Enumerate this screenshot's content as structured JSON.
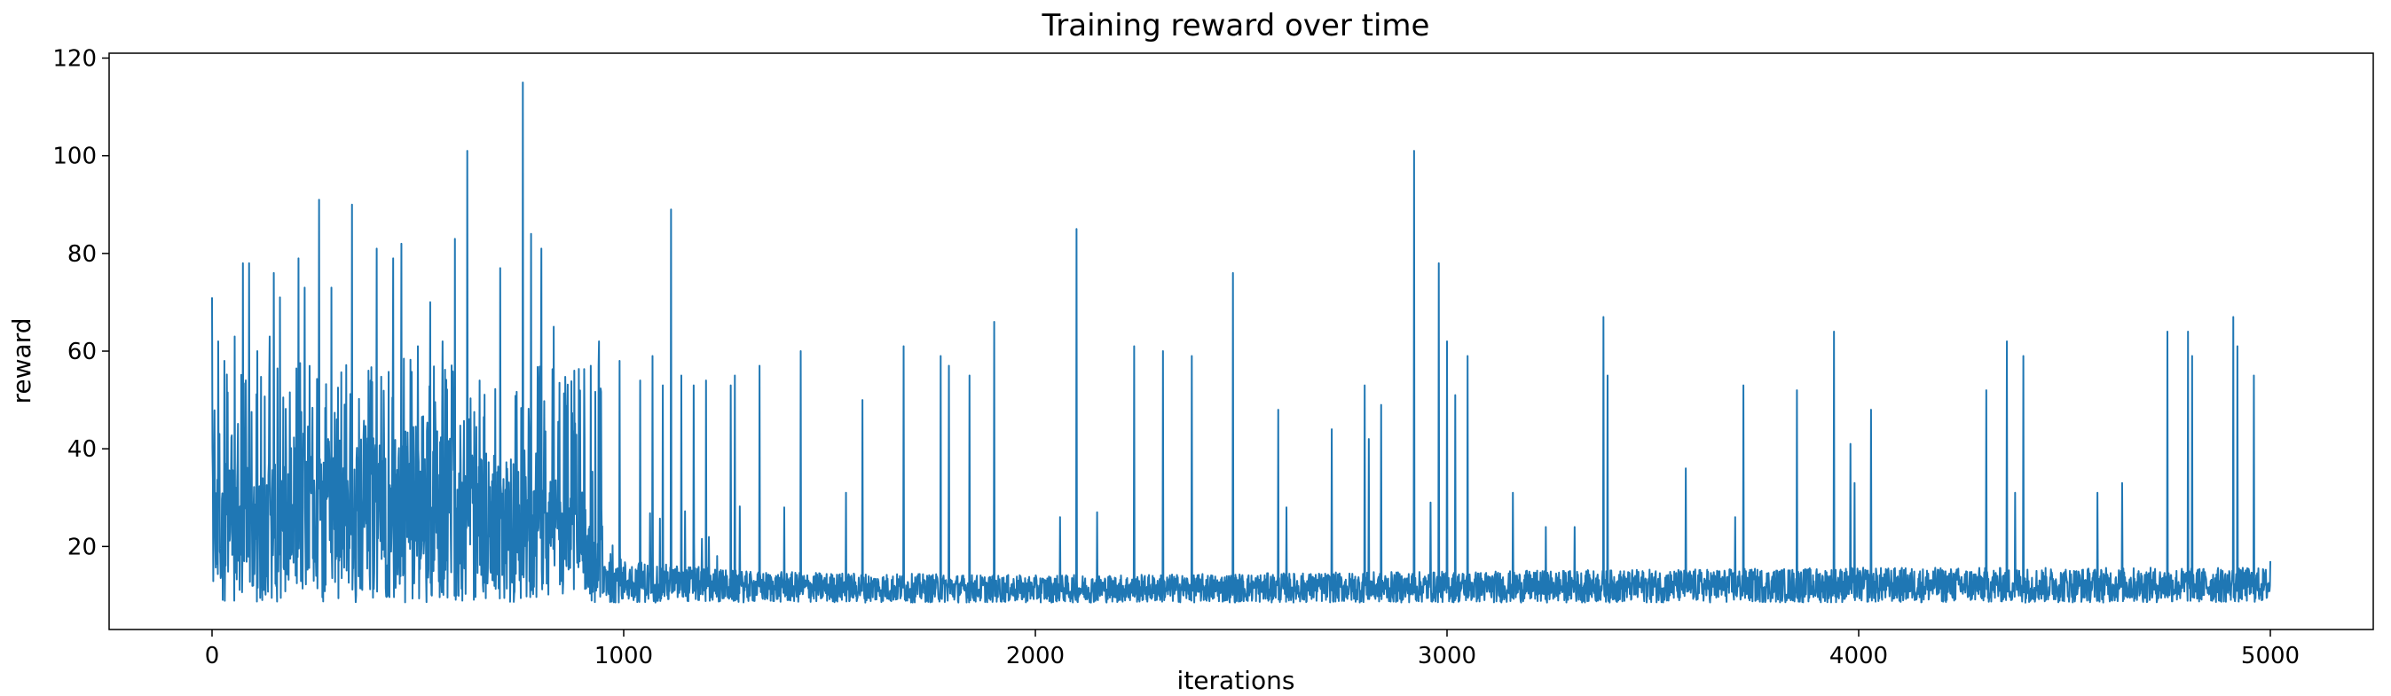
{
  "chart_data": {
    "type": "line",
    "title": "Training reward over time",
    "xlabel": "iterations",
    "ylabel": "reward",
    "xlim": [
      -250,
      5250
    ],
    "ylim": [
      3,
      121
    ],
    "xticks": [
      0,
      1000,
      2000,
      3000,
      4000,
      5000
    ],
    "yticks": [
      20,
      40,
      60,
      80,
      100,
      120
    ],
    "grid": false,
    "series": [
      {
        "color": "#1f77b4",
        "baseline": [
          {
            "x": 0,
            "y": 20
          },
          {
            "x": 100,
            "y": 22
          },
          {
            "x": 300,
            "y": 24
          },
          {
            "x": 500,
            "y": 25
          },
          {
            "x": 700,
            "y": 23
          },
          {
            "x": 850,
            "y": 18
          },
          {
            "x": 1000,
            "y": 14
          },
          {
            "x": 1300,
            "y": 12.5
          },
          {
            "x": 2000,
            "y": 12
          },
          {
            "x": 3000,
            "y": 12.5
          },
          {
            "x": 4000,
            "y": 13
          },
          {
            "x": 5000,
            "y": 13
          }
        ],
        "noise_floor": 8.5,
        "peaks": [
          {
            "x": 0,
            "y": 71
          },
          {
            "x": 15,
            "y": 62
          },
          {
            "x": 30,
            "y": 58
          },
          {
            "x": 55,
            "y": 63
          },
          {
            "x": 75,
            "y": 78
          },
          {
            "x": 90,
            "y": 78
          },
          {
            "x": 110,
            "y": 60
          },
          {
            "x": 140,
            "y": 63
          },
          {
            "x": 150,
            "y": 76
          },
          {
            "x": 165,
            "y": 71
          },
          {
            "x": 210,
            "y": 79
          },
          {
            "x": 225,
            "y": 73
          },
          {
            "x": 260,
            "y": 91
          },
          {
            "x": 290,
            "y": 73
          },
          {
            "x": 340,
            "y": 90
          },
          {
            "x": 380,
            "y": 56
          },
          {
            "x": 400,
            "y": 81
          },
          {
            "x": 440,
            "y": 79
          },
          {
            "x": 460,
            "y": 82
          },
          {
            "x": 500,
            "y": 61
          },
          {
            "x": 530,
            "y": 70
          },
          {
            "x": 560,
            "y": 62
          },
          {
            "x": 590,
            "y": 83
          },
          {
            "x": 620,
            "y": 101
          },
          {
            "x": 650,
            "y": 54
          },
          {
            "x": 700,
            "y": 77
          },
          {
            "x": 755,
            "y": 115
          },
          {
            "x": 775,
            "y": 84
          },
          {
            "x": 800,
            "y": 81
          },
          {
            "x": 830,
            "y": 65
          },
          {
            "x": 880,
            "y": 56
          },
          {
            "x": 920,
            "y": 57
          },
          {
            "x": 940,
            "y": 62
          },
          {
            "x": 990,
            "y": 58
          },
          {
            "x": 1040,
            "y": 54
          },
          {
            "x": 1070,
            "y": 59
          },
          {
            "x": 1095,
            "y": 53
          },
          {
            "x": 1115,
            "y": 89
          },
          {
            "x": 1140,
            "y": 55
          },
          {
            "x": 1170,
            "y": 53
          },
          {
            "x": 1200,
            "y": 54
          },
          {
            "x": 1260,
            "y": 53
          },
          {
            "x": 1270,
            "y": 55
          },
          {
            "x": 1330,
            "y": 57
          },
          {
            "x": 1390,
            "y": 28
          },
          {
            "x": 1430,
            "y": 60
          },
          {
            "x": 1540,
            "y": 31
          },
          {
            "x": 1580,
            "y": 50
          },
          {
            "x": 1680,
            "y": 61
          },
          {
            "x": 1770,
            "y": 59
          },
          {
            "x": 1790,
            "y": 57
          },
          {
            "x": 1840,
            "y": 55
          },
          {
            "x": 1900,
            "y": 66
          },
          {
            "x": 2060,
            "y": 26
          },
          {
            "x": 2100,
            "y": 85
          },
          {
            "x": 2150,
            "y": 27
          },
          {
            "x": 2240,
            "y": 61
          },
          {
            "x": 2310,
            "y": 60
          },
          {
            "x": 2380,
            "y": 59
          },
          {
            "x": 2480,
            "y": 76
          },
          {
            "x": 2590,
            "y": 48
          },
          {
            "x": 2610,
            "y": 28
          },
          {
            "x": 2720,
            "y": 44
          },
          {
            "x": 2800,
            "y": 53
          },
          {
            "x": 2810,
            "y": 42
          },
          {
            "x": 2840,
            "y": 49
          },
          {
            "x": 2920,
            "y": 101
          },
          {
            "x": 2960,
            "y": 29
          },
          {
            "x": 2980,
            "y": 78
          },
          {
            "x": 3000,
            "y": 62
          },
          {
            "x": 3020,
            "y": 51
          },
          {
            "x": 3050,
            "y": 59
          },
          {
            "x": 3160,
            "y": 31
          },
          {
            "x": 3240,
            "y": 24
          },
          {
            "x": 3310,
            "y": 24
          },
          {
            "x": 3380,
            "y": 67
          },
          {
            "x": 3390,
            "y": 55
          },
          {
            "x": 3580,
            "y": 36
          },
          {
            "x": 3700,
            "y": 26
          },
          {
            "x": 3720,
            "y": 53
          },
          {
            "x": 3850,
            "y": 52
          },
          {
            "x": 3940,
            "y": 64
          },
          {
            "x": 3980,
            "y": 41
          },
          {
            "x": 3990,
            "y": 33
          },
          {
            "x": 4030,
            "y": 48
          },
          {
            "x": 4310,
            "y": 52
          },
          {
            "x": 4360,
            "y": 62
          },
          {
            "x": 4380,
            "y": 31
          },
          {
            "x": 4400,
            "y": 59
          },
          {
            "x": 4580,
            "y": 31
          },
          {
            "x": 4640,
            "y": 33
          },
          {
            "x": 4750,
            "y": 64
          },
          {
            "x": 4800,
            "y": 64
          },
          {
            "x": 4810,
            "y": 59
          },
          {
            "x": 4910,
            "y": 67
          },
          {
            "x": 4920,
            "y": 61
          },
          {
            "x": 4960,
            "y": 55
          },
          {
            "x": 5000,
            "y": 17
          }
        ]
      }
    ]
  }
}
